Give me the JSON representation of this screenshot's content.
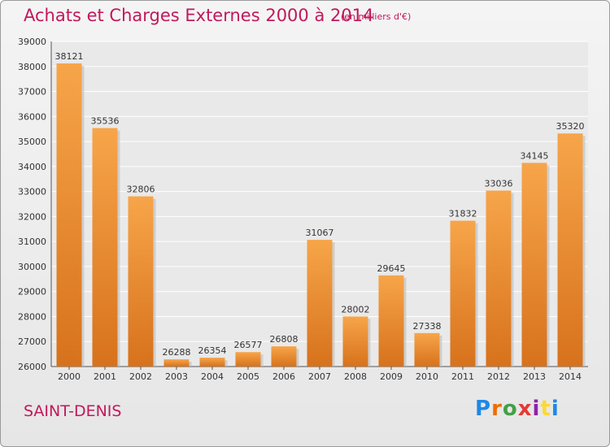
{
  "title": "Achats et Charges Externes 2000 à 2014",
  "subtitle": "(en milliers d'€)",
  "place": "SAINT-DENIS",
  "brand": {
    "letters": [
      "P",
      "r",
      "o",
      "x",
      "i",
      "t",
      "i"
    ],
    "colors": [
      "#1e88e5",
      "#ef6c00",
      "#43a047",
      "#e53935",
      "#8e24aa",
      "#fdd835",
      "#1e88e5"
    ]
  },
  "chart_data": {
    "type": "bar",
    "categories": [
      "2000",
      "2001",
      "2002",
      "2003",
      "2004",
      "2005",
      "2006",
      "2007",
      "2008",
      "2009",
      "2010",
      "2011",
      "2012",
      "2013",
      "2014"
    ],
    "values": [
      38121,
      35536,
      32806,
      26288,
      26354,
      26577,
      26808,
      31067,
      28002,
      29645,
      27338,
      31832,
      33036,
      34145,
      35320
    ],
    "title": "Achats et Charges Externes 2000 à 2014",
    "ylim": [
      26000,
      39000
    ],
    "yticks": [
      26000,
      27000,
      28000,
      29000,
      30000,
      31000,
      32000,
      33000,
      34000,
      35000,
      36000,
      37000,
      38000,
      39000
    ],
    "grid": true,
    "bar_color": "#f0922e"
  }
}
